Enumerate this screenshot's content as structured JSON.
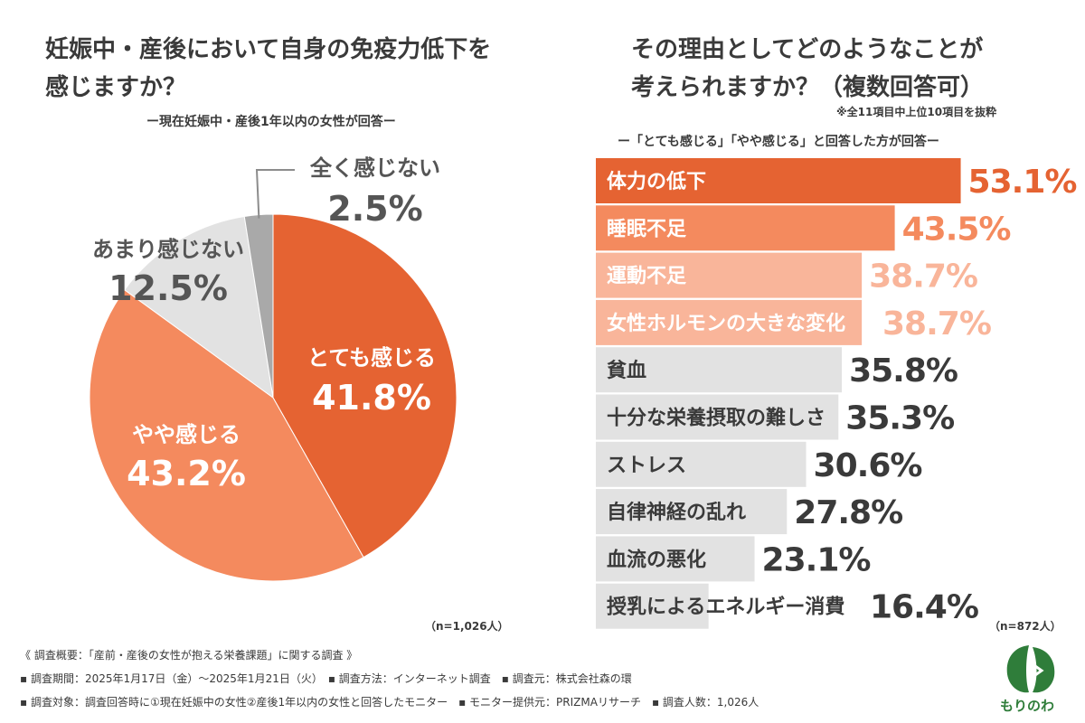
{
  "left": {
    "title_line1": "妊娠中・産後において自身の免疫力低下を",
    "title_line2": "感じますか？",
    "subtitle": "ー現在妊娠中・産後1年以内の女性が回答ー",
    "n": "（n=1,026人）"
  },
  "right": {
    "title_line1": "その理由としてどのようなことが",
    "title_line2": "考えられますか？（複数回答可）",
    "note": "※全11項目中上位10項目を抜粋",
    "subtitle": "ー「とても感じる」「やや感じる」と回答した方が回答ー",
    "n": "（n=872人）"
  },
  "colors": {
    "dark_orange": "#e56332",
    "mid_orange": "#f48a5e",
    "light_orange": "#f9b59a",
    "light_gray": "#e2e2e2",
    "mid_gray": "#a9a9a9",
    "text": "#3a3a3a"
  },
  "chart_data": [
    {
      "type": "pie",
      "slices": [
        {
          "label": "とても感じる",
          "value": 41.8,
          "display": "41.8%",
          "color": "#e56332"
        },
        {
          "label": "やや感じる",
          "value": 43.2,
          "display": "43.2%",
          "color": "#f48a5e"
        },
        {
          "label": "あまり感じない",
          "value": 12.5,
          "display": "12.5%",
          "color": "#e2e2e2"
        },
        {
          "label": "全く感じない",
          "value": 2.5,
          "display": "2.5%",
          "color": "#a9a9a9"
        }
      ]
    },
    {
      "type": "bar",
      "orientation": "horizontal",
      "categories": [
        "体力の低下",
        "睡眠不足",
        "運動不足",
        "女性ホルモンの大きな変化",
        "貧血",
        "十分な栄養摂取の難しさ",
        "ストレス",
        "自律神経の乱れ",
        "血流の悪化",
        "授乳によるエネルギー消費"
      ],
      "values": [
        53.1,
        43.5,
        38.7,
        38.7,
        35.8,
        35.3,
        30.6,
        27.8,
        23.1,
        16.4
      ],
      "labels": [
        "53.1%",
        "43.5%",
        "38.7%",
        "38.7%",
        "35.8%",
        "35.3%",
        "30.6%",
        "27.8%",
        "23.1%",
        "16.4%"
      ],
      "bar_colors": [
        "#e56332",
        "#f48a5e",
        "#f9b59a",
        "#f9b59a",
        "#e2e2e2",
        "#e2e2e2",
        "#e2e2e2",
        "#e2e2e2",
        "#e2e2e2",
        "#e2e2e2"
      ],
      "value_colors": [
        "#e56332",
        "#f48a5e",
        "#f9b59a",
        "#f9b59a",
        "#3a3a3a",
        "#3a3a3a",
        "#3a3a3a",
        "#3a3a3a",
        "#3a3a3a",
        "#3a3a3a"
      ],
      "label_colors": [
        "#ffffff",
        "#ffffff",
        "#ffffff",
        "#ffffff",
        "#3a3a3a",
        "#3a3a3a",
        "#3a3a3a",
        "#3a3a3a",
        "#3a3a3a",
        "#3a3a3a"
      ]
    }
  ],
  "footer": {
    "line1": "《 調査概要：「産前・産後の女性が抱える栄養課題」に関する調査 》",
    "line2": "▪ 調査期間：2025年1月17日（金）〜2025年1月21日（火）　▪ 調査方法：インターネット調査　▪ 調査元：株式会社森の環",
    "line3": "▪ 調査対象：調査回答時に①現在妊娠中の女性②産後1年以内の女性と回答したモニター　▪ モニター提供元：PRIZMAリサーチ　▪ 調査人数：1,026人",
    "logo_text": "もりのわ"
  }
}
